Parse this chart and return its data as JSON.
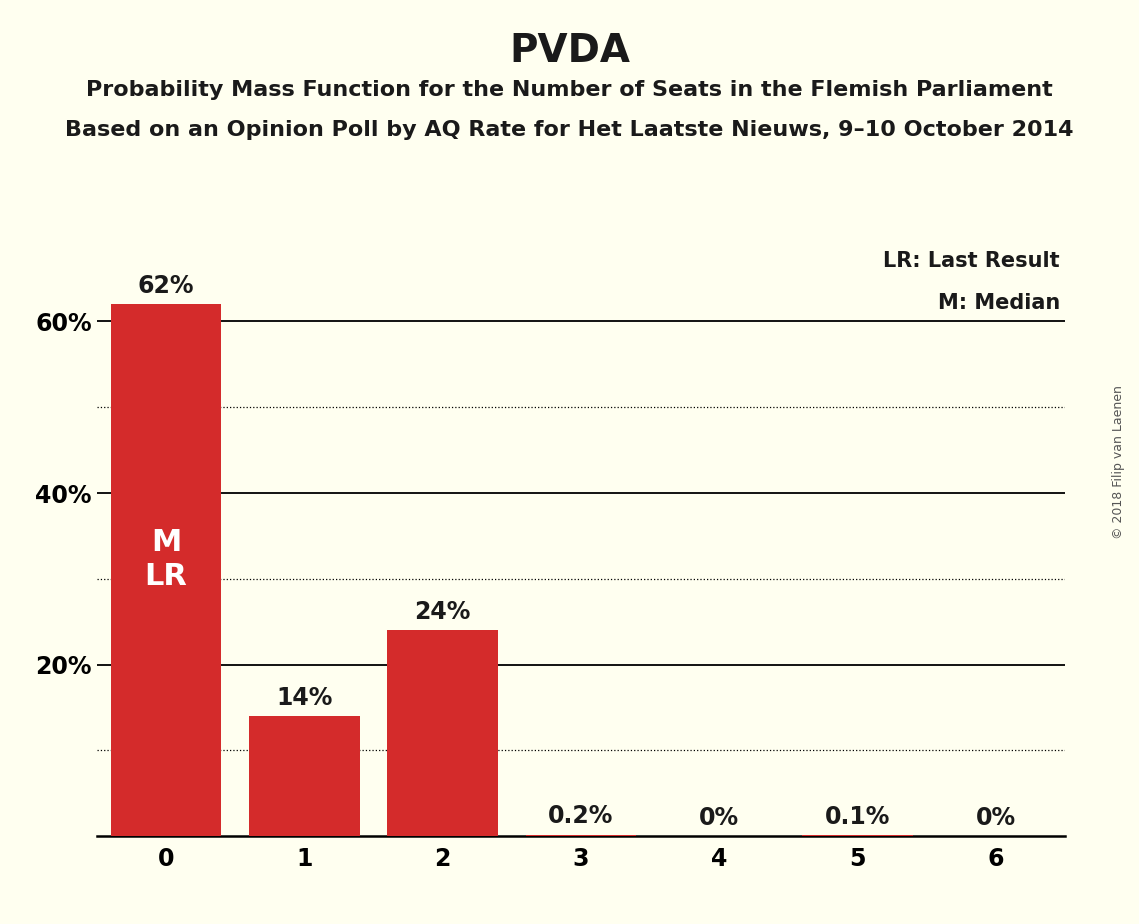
{
  "title": "PVDA",
  "subtitle_line1": "Probability Mass Function for the Number of Seats in the Flemish Parliament",
  "subtitle_line2": "Based on an Opinion Poll by AQ Rate for Het Laatste Nieuws, 9–10 October 2014",
  "copyright": "© 2018 Filip van Laenen",
  "categories": [
    0,
    1,
    2,
    3,
    4,
    5,
    6
  ],
  "values": [
    0.62,
    0.14,
    0.24,
    0.002,
    0.0,
    0.001,
    0.0
  ],
  "bar_color": "#D42B2B",
  "background_color": "#FFFFF0",
  "ylabel_ticks": [
    0.0,
    0.2,
    0.4,
    0.6
  ],
  "ylabel_tick_labels": [
    "",
    "20%",
    "40%",
    "60%"
  ],
  "solid_gridlines": [
    0.2,
    0.4,
    0.6
  ],
  "dotted_gridlines": [
    0.1,
    0.3,
    0.5
  ],
  "ylim": [
    0,
    0.7
  ],
  "legend_text_lr": "LR: Last Result",
  "legend_text_m": "M: Median",
  "bar_labels": [
    "62%",
    "14%",
    "24%",
    "0.2%",
    "0%",
    "0.1%",
    "0%"
  ],
  "bar_label_color_outside": "#1A1A1A",
  "bar_label_color_inside": "#FFFFFF",
  "title_fontsize": 28,
  "subtitle_fontsize": 16,
  "label_fontsize": 17,
  "tick_fontsize": 17,
  "legend_fontsize": 15,
  "copyright_fontsize": 9,
  "ml_label_fontsize": 22
}
